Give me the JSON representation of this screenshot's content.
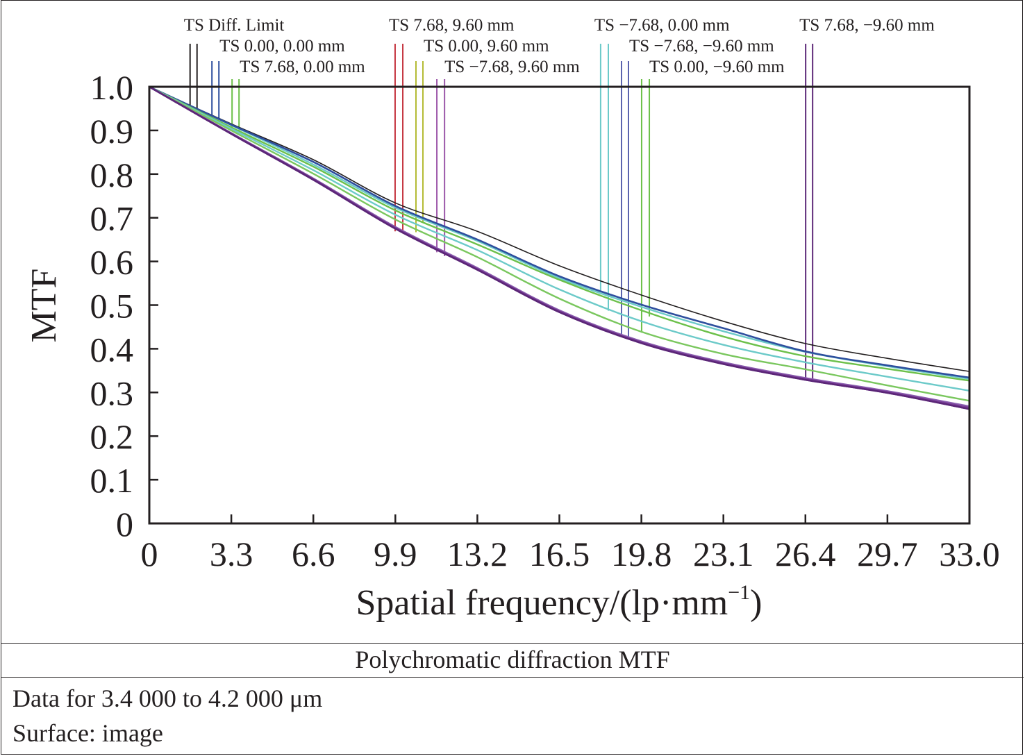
{
  "chart_data": {
    "type": "line",
    "title": "Polychromatic diffraction MTF",
    "xlabel": "Spatial frequency/(lp·mm",
    "xlabel_superscript": "−1",
    "xlabel_close": ")",
    "ylabel": "MTF",
    "xlim": [
      0,
      33.0
    ],
    "ylim": [
      0,
      1.0
    ],
    "grid": false,
    "legend_placement": "top",
    "x_ticks": [
      0,
      3.3,
      6.6,
      9.9,
      13.2,
      16.5,
      19.8,
      23.1,
      26.4,
      29.7,
      33.0
    ],
    "x_tick_labels": [
      "0",
      "3.3",
      "6.6",
      "9.9",
      "13.2",
      "16.5",
      "19.8",
      "23.1",
      "26.4",
      "29.7",
      "33.0"
    ],
    "y_ticks": [
      0,
      0.1,
      0.2,
      0.3,
      0.4,
      0.5,
      0.6,
      0.7,
      0.8,
      0.9,
      1.0
    ],
    "y_tick_labels": [
      "0",
      "0.1",
      "0.2",
      "0.3",
      "0.4",
      "0.5",
      "0.6",
      "0.7",
      "0.8",
      "0.9",
      "1.0"
    ],
    "x": [
      0,
      3.3,
      6.6,
      9.9,
      13.2,
      16.5,
      19.8,
      23.1,
      26.4,
      29.7,
      33.0
    ],
    "series": [
      {
        "name": "TS Diff. Limit",
        "color": "#231f20",
        "width": 1.6,
        "values": [
          1.0,
          0.915,
          0.833,
          0.734,
          0.669,
          0.59,
          0.523,
          0.463,
          0.412,
          0.378,
          0.348
        ]
      },
      {
        "name": "TS 0.00, 0.00 mm",
        "color": "#2e4f9e",
        "width": 2.6,
        "values": [
          1.0,
          0.913,
          0.828,
          0.727,
          0.65,
          0.566,
          0.501,
          0.447,
          0.394,
          0.362,
          0.334
        ]
      },
      {
        "name": "TS 7.68, 0.00 mm",
        "color": "#6cc04a",
        "width": 2.4,
        "values": [
          1.0,
          0.907,
          0.817,
          0.717,
          0.639,
          0.558,
          0.488,
          0.428,
          0.383,
          0.354,
          0.327
        ]
      },
      {
        "name": "TS −7.68, 0.00 mm",
        "color": "#6ccac9",
        "width": 2.4,
        "values": [
          1.0,
          0.912,
          0.822,
          0.723,
          0.647,
          0.562,
          0.496,
          0.44,
          0.393,
          0.36,
          0.331
        ]
      },
      {
        "name": "TS −7.68, −9.60 mm",
        "color": "#6ccac9",
        "width": 2.4,
        "values": [
          1.0,
          0.904,
          0.809,
          0.707,
          0.626,
          0.536,
          0.463,
          0.409,
          0.369,
          0.336,
          0.304
        ]
      },
      {
        "name": "TS 0.00, −9.60 mm",
        "color": "#7ac75e",
        "width": 2.4,
        "values": [
          1.0,
          0.9,
          0.801,
          0.696,
          0.61,
          0.515,
          0.439,
          0.388,
          0.353,
          0.316,
          0.281
        ]
      },
      {
        "name": "TS 7.68, 9.60 mm",
        "color": "#8b5fb0",
        "width": 2.6,
        "values": [
          1.0,
          0.894,
          0.79,
          0.679,
          0.585,
          0.488,
          0.417,
          0.369,
          0.333,
          0.303,
          0.268
        ]
      },
      {
        "name": "TS 0.00, 9.60 mm",
        "color": "#7a3f98",
        "width": 2.6,
        "values": [
          1.0,
          0.893,
          0.789,
          0.677,
          0.583,
          0.486,
          0.415,
          0.367,
          0.331,
          0.301,
          0.265
        ]
      },
      {
        "name": "TS −7.68, 9.60 mm",
        "color": "#6a2c8a",
        "width": 2.6,
        "values": [
          1.0,
          0.892,
          0.787,
          0.675,
          0.581,
          0.484,
          0.413,
          0.365,
          0.329,
          0.299,
          0.262
        ]
      },
      {
        "name": "TS 7.68, −9.60 mm",
        "color": "#5b2677",
        "width": 2.6,
        "values": [
          1.0,
          0.892,
          0.787,
          0.675,
          0.581,
          0.484,
          0.413,
          0.365,
          0.329,
          0.299,
          0.262
        ]
      }
    ],
    "legend": [
      {
        "label": "TS Diff. Limit",
        "row": 0,
        "color": "#231f20",
        "marker_x": [
          1.64,
          1.92
        ],
        "marker_bottom": [
          0.955,
          0.948
        ]
      },
      {
        "label": "TS 0.00, 0.00 mm",
        "row": 1,
        "color": "#2e4f9e",
        "marker_x": [
          2.52,
          2.8
        ],
        "marker_bottom": [
          0.93,
          0.923
        ]
      },
      {
        "label": "TS 7.68, 0.00 mm",
        "row": 2,
        "color": "#6cc04a",
        "marker_x": [
          3.33,
          3.61
        ],
        "marker_bottom": [
          0.905,
          0.898
        ]
      },
      {
        "label": "TS 7.68, 9.60 mm",
        "row": 0,
        "color": "#c4343f",
        "marker_x": [
          9.89,
          10.2
        ],
        "marker_bottom": [
          0.669,
          0.664
        ]
      },
      {
        "label": "TS 0.00, 9.60 mm",
        "row": 1,
        "color": "#b4bb34",
        "marker_x": [
          10.73,
          11.01
        ],
        "marker_bottom": [
          0.667,
          0.69
        ]
      },
      {
        "label": "TS −7.68, 9.60 mm",
        "row": 2,
        "color": "#9b55a8",
        "marker_x": [
          11.57,
          11.88
        ],
        "marker_bottom": [
          0.621,
          0.612
        ]
      },
      {
        "label": "TS −7.68, 0.00 mm",
        "row": 0,
        "color": "#6ccac9",
        "marker_x": [
          18.16,
          18.47
        ],
        "marker_bottom": [
          0.534,
          0.487
        ]
      },
      {
        "label": "TS −7.68, −9.60 mm",
        "row": 1,
        "color": "#5a62ad",
        "marker_x": [
          19.0,
          19.28
        ],
        "marker_bottom": [
          0.428,
          0.422
        ]
      },
      {
        "label": "TS 0.00, −9.60 mm",
        "row": 2,
        "color": "#6cc04a",
        "marker_x": [
          19.81,
          20.12
        ],
        "marker_bottom": [
          0.437,
          0.474
        ]
      },
      {
        "label": "TS 7.68, −9.60 mm",
        "row": 0,
        "color": "#5b2677",
        "marker_x": [
          26.41,
          26.69
        ],
        "marker_bottom": [
          0.331,
          0.329
        ]
      }
    ]
  },
  "caption": {
    "title": "Polychromatic diffraction MTF",
    "lines": [
      "Data for 3.4 000 to 4.2 000 μm",
      "Surface: image"
    ]
  }
}
